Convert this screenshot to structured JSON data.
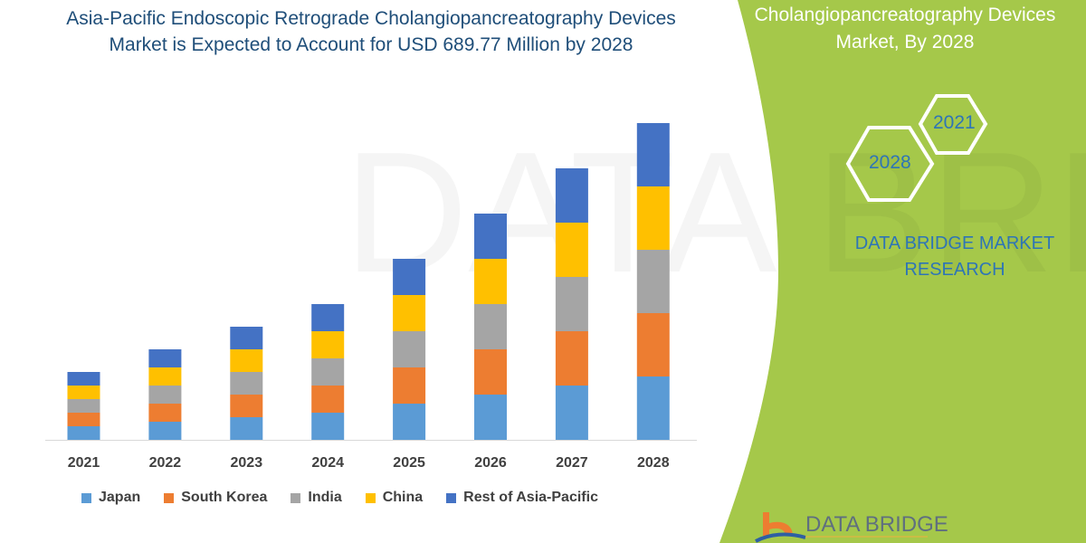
{
  "title": {
    "line1": "Asia-Pacific Endoscopic Retrograde Cholangiopancreatography Devices",
    "line2": "Market is Expected to Account for USD 689.77 Million by 2028"
  },
  "side_panel": {
    "title_line1": "Cholangiopancreatography Devices",
    "title_line2": "Market, By 2028",
    "hex_years": [
      "2021",
      "2028"
    ],
    "brand_line1": "DATA BRIDGE MARKET",
    "brand_line2": "RESEARCH",
    "logo_text": "DATA BRIDGE",
    "accent_color": "#a5c84a"
  },
  "chart_data": {
    "type": "bar",
    "stacked": true,
    "title": "Asia-Pacific Endoscopic Retrograde Cholangiopancreatography Devices Market is Expected to Account for USD 689.77 Million by 2028",
    "xlabel": "",
    "ylabel": "",
    "y_axis_shown": false,
    "grid": false,
    "legend_position": "bottom",
    "categories": [
      "2021",
      "2022",
      "2023",
      "2024",
      "2025",
      "2026",
      "2027",
      "2028"
    ],
    "series": [
      {
        "name": "Japan",
        "color": "#5b9bd5",
        "values": [
          3,
          4,
          5,
          6,
          8,
          10,
          12,
          14
        ]
      },
      {
        "name": "South Korea",
        "color": "#ed7d31",
        "values": [
          3,
          4,
          5,
          6,
          8,
          10,
          12,
          14
        ]
      },
      {
        "name": "India",
        "color": "#a5a5a5",
        "values": [
          3,
          4,
          5,
          6,
          8,
          10,
          12,
          14
        ]
      },
      {
        "name": "China",
        "color": "#ffc000",
        "values": [
          3,
          4,
          5,
          6,
          8,
          10,
          12,
          14
        ]
      },
      {
        "name": "Rest of Asia-Pacific",
        "color": "#4472c4",
        "values": [
          3,
          4,
          5,
          6,
          8,
          10,
          12,
          14
        ]
      }
    ]
  }
}
